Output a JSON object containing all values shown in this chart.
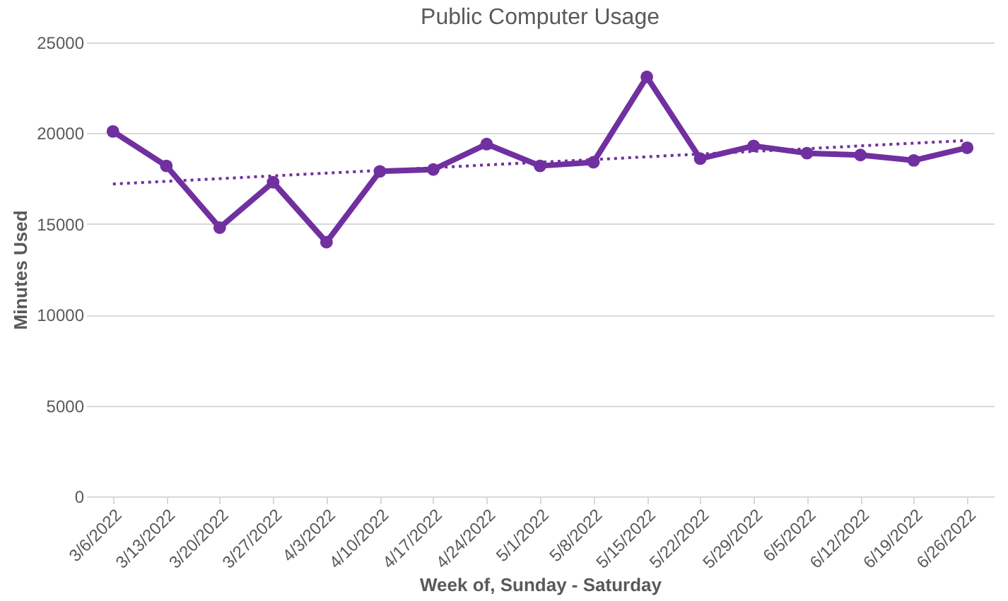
{
  "chart_data": {
    "type": "line",
    "title": "Public Computer Usage",
    "xlabel": "Week of, Sunday - Saturday",
    "ylabel": "Minutes Used",
    "categories": [
      "3/6/2022",
      "3/13/2022",
      "3/20/2022",
      "3/27/2022",
      "4/3/2022",
      "4/10/2022",
      "4/17/2022",
      "4/24/2022",
      "5/1/2022",
      "5/8/2022",
      "5/15/2022",
      "5/22/2022",
      "5/29/2022",
      "6/5/2022",
      "6/12/2022",
      "6/19/2022",
      "6/26/2022"
    ],
    "series": [
      {
        "color": "#7030a0",
        "marker": "circle",
        "line_style": "solid",
        "values": [
          20100,
          18200,
          14800,
          17300,
          14000,
          17900,
          18000,
          19400,
          18200,
          18400,
          23100,
          18600,
          19300,
          18900,
          18800,
          18500,
          19200
        ]
      },
      {
        "type": "line",
        "color": "#7030a0",
        "marker": "none",
        "line_style": "dotted",
        "x": [
          "3/6/2022",
          "6/26/2022"
        ],
        "values": [
          17200,
          19600
        ]
      }
    ],
    "ylim": [
      0,
      25000
    ],
    "yticks": [
      0,
      5000,
      10000,
      15000,
      20000,
      25000
    ],
    "grid": "y"
  }
}
